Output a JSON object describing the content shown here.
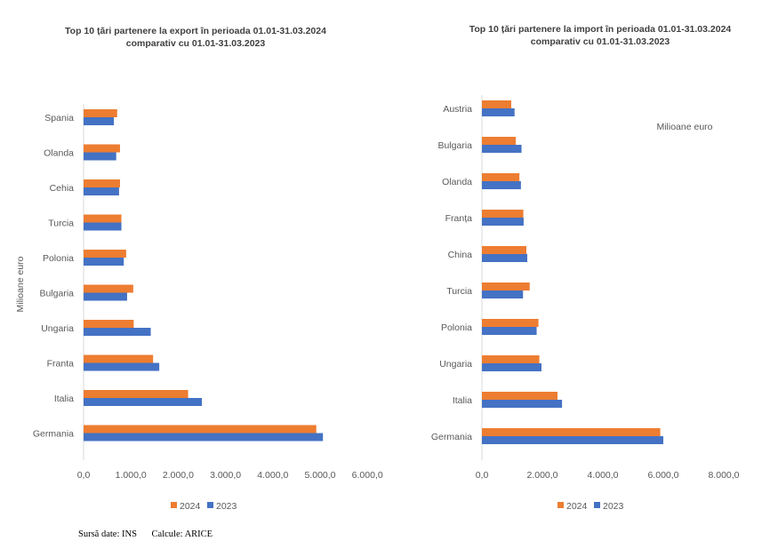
{
  "colors": {
    "s2024": "#ED7D31",
    "s2023": "#4472C4",
    "grid": "#d9d9d9",
    "text": "#595959"
  },
  "chart_data": [
    {
      "type": "bar",
      "orientation": "horizontal",
      "title_line1": "Top 10 țări partenere la export în perioada 01.01-31.03.2024",
      "title_line2": "comparativ cu 01.01-31.03.2023",
      "ylabel": "Milioane euro",
      "categories": [
        "Spania",
        "Olanda",
        "Cehia",
        "Turcia",
        "Polonia",
        "Bulgaria",
        "Ungaria",
        "Franta",
        "Italia",
        "Germania"
      ],
      "series": [
        {
          "name": "2024",
          "values": [
            710,
            770,
            770,
            800,
            900,
            1050,
            1060,
            1470,
            2210,
            4920
          ]
        },
        {
          "name": "2023",
          "values": [
            640,
            690,
            750,
            800,
            850,
            920,
            1420,
            1600,
            2500,
            5060
          ]
        }
      ],
      "xlim": [
        0,
        6000
      ],
      "xticks": [
        "0,0",
        "1.000,0",
        "2.000,0",
        "3.000,0",
        "4.000,0",
        "5.000,0",
        "6.000,0"
      ],
      "legend": [
        "2024",
        "2023"
      ],
      "legend_position": "bottom"
    },
    {
      "type": "bar",
      "orientation": "horizontal",
      "title_line1": "Top 10 țări partenere la import în perioada 01.01-31.03.2024",
      "title_line2": "comparativ cu 01.01-31.03.2023",
      "annotation": "Milioane euro",
      "categories": [
        "Austria",
        "Bulgaria",
        "Olanda",
        "Franța",
        "China",
        "Turcia",
        "Polonia",
        "Ungaria",
        "Italia",
        "Germania"
      ],
      "series": [
        {
          "name": "2024",
          "values": [
            970,
            1120,
            1240,
            1370,
            1470,
            1580,
            1870,
            1900,
            2500,
            5900
          ]
        },
        {
          "name": "2023",
          "values": [
            1080,
            1310,
            1290,
            1380,
            1500,
            1360,
            1810,
            1970,
            2650,
            6000
          ]
        }
      ],
      "xlim": [
        0,
        8000
      ],
      "xticks": [
        "0,0",
        "2.000,0",
        "4.000,0",
        "6.000,0",
        "8.000,0"
      ],
      "legend": [
        "2024",
        "2023"
      ],
      "legend_position": "bottom"
    }
  ],
  "source": {
    "data": "Sursă date: INS",
    "calc": "Calcule: ARICE"
  }
}
